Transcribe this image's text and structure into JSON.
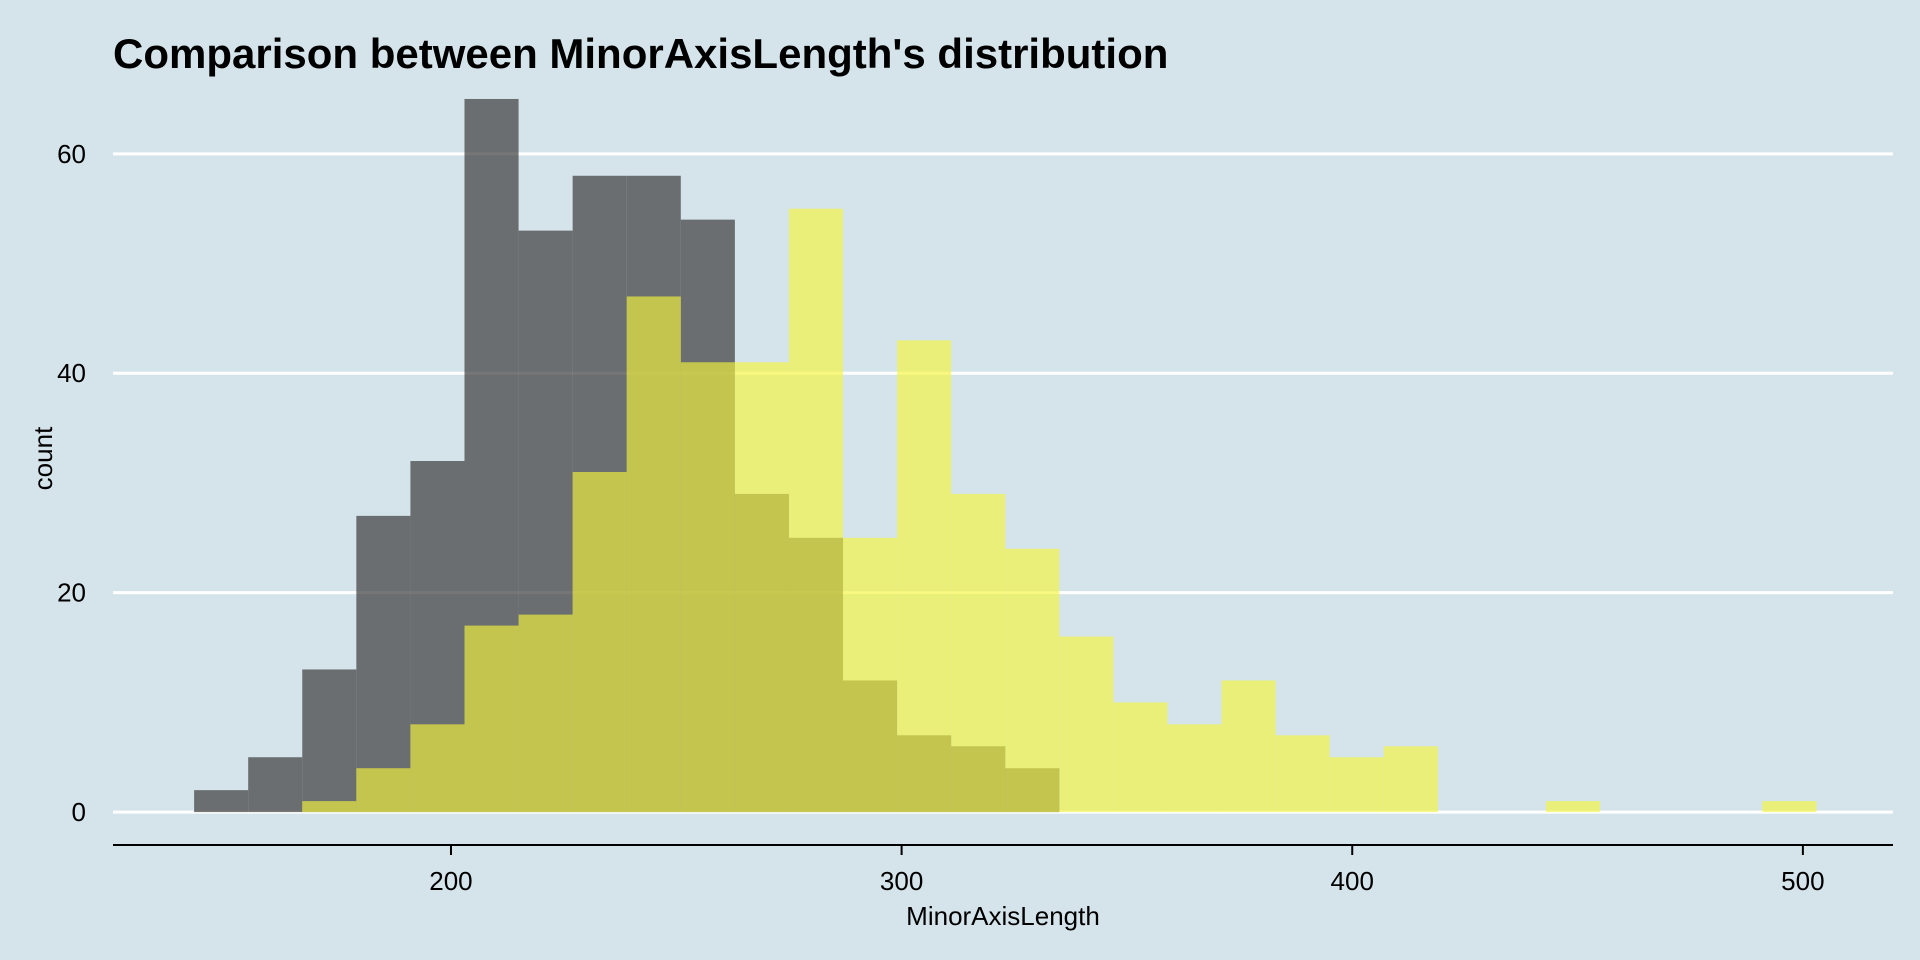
{
  "chart_data": {
    "type": "histogram",
    "title": "Comparison between MinorAxisLength's distribution",
    "xlabel": "MinorAxisLength",
    "ylabel": "count",
    "xlim": [
      125,
      520
    ],
    "ylim": [
      -3,
      66
    ],
    "x_ticks": [
      200,
      300,
      400,
      500
    ],
    "y_ticks": [
      0,
      20,
      40,
      60
    ],
    "grid": "horizontal",
    "legend": "none",
    "bin_width": 12,
    "series": [
      {
        "color": "#3c3c3c",
        "opacity": 0.7,
        "bins": [
          {
            "x0": 143,
            "x1": 155,
            "count": 2
          },
          {
            "x0": 155,
            "x1": 167,
            "count": 5
          },
          {
            "x0": 167,
            "x1": 179,
            "count": 13
          },
          {
            "x0": 179,
            "x1": 191,
            "count": 27
          },
          {
            "x0": 191,
            "x1": 203,
            "count": 32
          },
          {
            "x0": 203,
            "x1": 215,
            "count": 65
          },
          {
            "x0": 215,
            "x1": 227,
            "count": 53
          },
          {
            "x0": 227,
            "x1": 239,
            "count": 58
          },
          {
            "x0": 239,
            "x1": 251,
            "count": 58
          },
          {
            "x0": 251,
            "x1": 263,
            "count": 54
          },
          {
            "x0": 263,
            "x1": 275,
            "count": 29
          },
          {
            "x0": 275,
            "x1": 287,
            "count": 25
          },
          {
            "x0": 287,
            "x1": 299,
            "count": 12
          },
          {
            "x0": 299,
            "x1": 311,
            "count": 7
          },
          {
            "x0": 311,
            "x1": 323,
            "count": 6
          },
          {
            "x0": 323,
            "x1": 335,
            "count": 4
          }
        ]
      },
      {
        "color": "#f5f53c",
        "opacity": 0.65,
        "bins": [
          {
            "x0": 167,
            "x1": 179,
            "count": 1
          },
          {
            "x0": 179,
            "x1": 191,
            "count": 4
          },
          {
            "x0": 191,
            "x1": 203,
            "count": 8
          },
          {
            "x0": 203,
            "x1": 215,
            "count": 17
          },
          {
            "x0": 215,
            "x1": 227,
            "count": 18
          },
          {
            "x0": 227,
            "x1": 239,
            "count": 31
          },
          {
            "x0": 239,
            "x1": 251,
            "count": 47
          },
          {
            "x0": 251,
            "x1": 263,
            "count": 41
          },
          {
            "x0": 263,
            "x1": 275,
            "count": 41
          },
          {
            "x0": 275,
            "x1": 287,
            "count": 55
          },
          {
            "x0": 287,
            "x1": 299,
            "count": 25
          },
          {
            "x0": 299,
            "x1": 311,
            "count": 43
          },
          {
            "x0": 311,
            "x1": 323,
            "count": 29
          },
          {
            "x0": 323,
            "x1": 335,
            "count": 24
          },
          {
            "x0": 335,
            "x1": 347,
            "count": 16
          },
          {
            "x0": 347,
            "x1": 359,
            "count": 10
          },
          {
            "x0": 359,
            "x1": 371,
            "count": 8
          },
          {
            "x0": 371,
            "x1": 383,
            "count": 12
          },
          {
            "x0": 383,
            "x1": 395,
            "count": 7
          },
          {
            "x0": 395,
            "x1": 407,
            "count": 5
          },
          {
            "x0": 407,
            "x1": 419,
            "count": 6
          },
          {
            "x0": 443,
            "x1": 455,
            "count": 1
          },
          {
            "x0": 491,
            "x1": 503,
            "count": 1
          }
        ]
      }
    ]
  }
}
